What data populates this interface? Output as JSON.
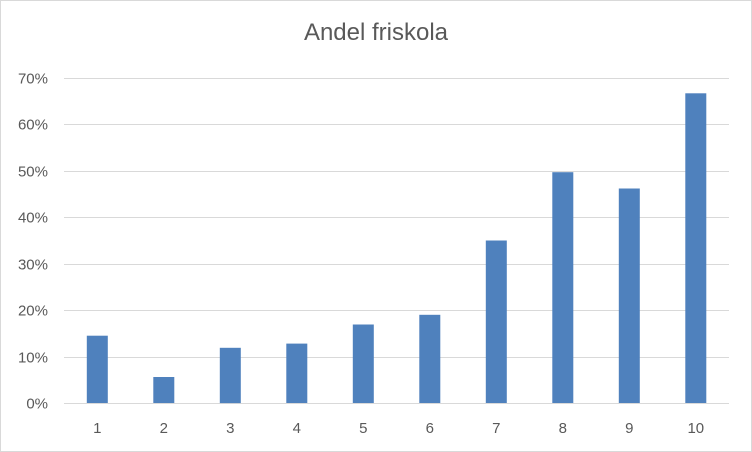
{
  "chart_data": {
    "type": "bar",
    "title": "Andel friskola",
    "categories": [
      "1",
      "2",
      "3",
      "4",
      "5",
      "6",
      "7",
      "8",
      "9",
      "10"
    ],
    "values": [
      0.145,
      0.056,
      0.119,
      0.128,
      0.169,
      0.19,
      0.35,
      0.497,
      0.462,
      0.667
    ],
    "ylim": [
      0,
      0.7
    ],
    "yticks": [
      {
        "value": 0.0,
        "label": "0%"
      },
      {
        "value": 0.1,
        "label": "10%"
      },
      {
        "value": 0.2,
        "label": "20%"
      },
      {
        "value": 0.3,
        "label": "30%"
      },
      {
        "value": 0.4,
        "label": "40%"
      },
      {
        "value": 0.5,
        "label": "50%"
      },
      {
        "value": 0.6,
        "label": "60%"
      },
      {
        "value": 0.7,
        "label": "70%"
      }
    ],
    "grid": true,
    "legend": "none",
    "colors": {
      "bar": "#4f81bd",
      "grid": "#d9d9d9",
      "text": "#595959"
    }
  }
}
